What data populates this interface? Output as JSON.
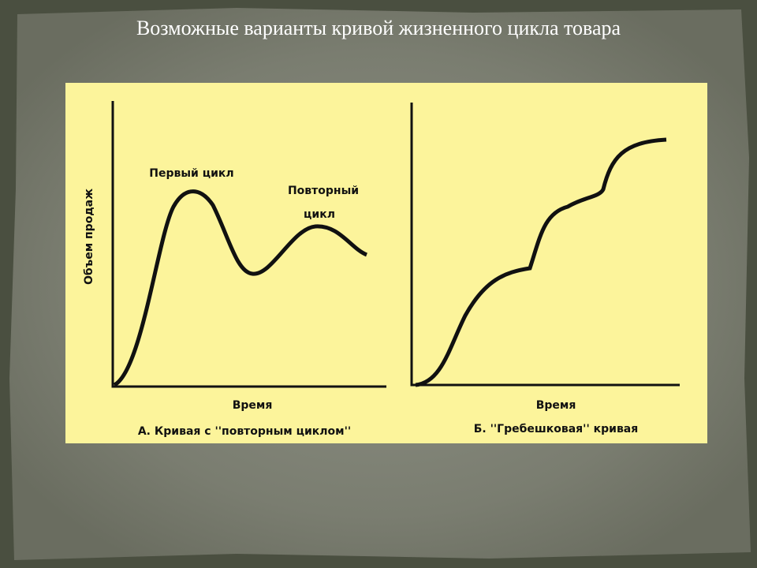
{
  "header": {
    "title": "Возможные варианты кривой жизненного цикла товара"
  },
  "panels": [
    {
      "y_label": "Объем продаж",
      "x_label": "Время",
      "annotations": [
        "Первый цикл",
        "Повторный",
        "цикл"
      ],
      "caption": "А. Кривая с ''повторным циклом''"
    },
    {
      "x_label": "Время",
      "caption": "Б. ''Гребешковая'' кривая"
    }
  ]
}
